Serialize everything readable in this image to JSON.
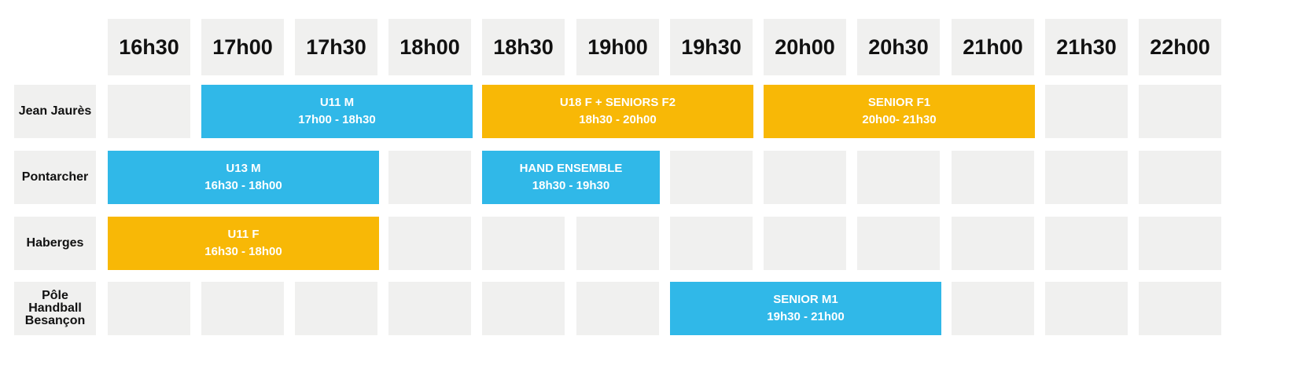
{
  "times": [
    "16h30",
    "17h00",
    "17h30",
    "18h00",
    "18h30",
    "19h00",
    "19h30",
    "20h00",
    "20h30",
    "21h00",
    "21h30",
    "22h00"
  ],
  "venues": [
    {
      "label": "Jean Jaurès"
    },
    {
      "label": "Pontarcher"
    },
    {
      "label": "Haberges"
    },
    {
      "label": "Pôle Handball Besançon"
    }
  ],
  "colors": {
    "blue": "#30b8e8",
    "yellow": "#f8b806",
    "cell": "#f0f0ef"
  },
  "events": [
    {
      "venue": 0,
      "start": "17h00",
      "end": "18h30",
      "color": "blue",
      "title": "U11 M",
      "time": "17h00 - 18h30"
    },
    {
      "venue": 0,
      "start": "18h30",
      "end": "20h00",
      "color": "yellow",
      "title": "U18 F + SENIORS F2",
      "time": "18h30 - 20h00"
    },
    {
      "venue": 0,
      "start": "20h00",
      "end": "21h30",
      "color": "yellow",
      "title": "SENIOR F1",
      "time": "20h00- 21h30"
    },
    {
      "venue": 1,
      "start": "16h30",
      "end": "18h00",
      "color": "blue",
      "title": "U13 M",
      "time": "16h30 - 18h00"
    },
    {
      "venue": 1,
      "start": "18h30",
      "end": "19h30",
      "color": "blue",
      "title": "HAND ENSEMBLE",
      "time": "18h30 - 19h30"
    },
    {
      "venue": 2,
      "start": "16h30",
      "end": "18h00",
      "color": "yellow",
      "title": "U11 F",
      "time": "16h30 - 18h00"
    },
    {
      "venue": 3,
      "start": "19h30",
      "end": "21h00",
      "color": "blue",
      "title": "SENIOR M1",
      "time": "19h30 - 21h00"
    }
  ]
}
